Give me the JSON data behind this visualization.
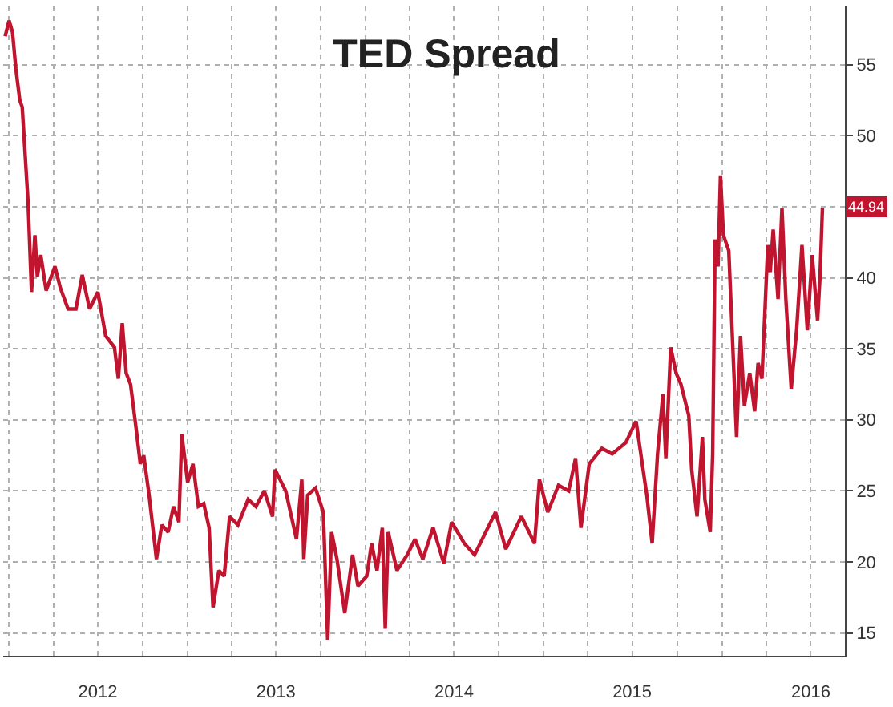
{
  "chart_data": {
    "type": "line",
    "title": "TED Spread",
    "x": [
      "2011-12-24",
      "2012-01-01",
      "2012-01-08",
      "2012-01-15",
      "2012-01-23",
      "2012-01-28",
      "2012-02-09",
      "2012-02-16",
      "2012-02-23",
      "2012-02-28",
      "2012-03-06",
      "2012-03-17",
      "2012-04-04",
      "2012-04-15",
      "2012-05-01",
      "2012-05-17",
      "2012-05-30",
      "2012-06-14",
      "2012-07-01",
      "2012-07-17",
      "2012-08-04",
      "2012-08-12",
      "2012-08-20",
      "2012-08-28",
      "2012-09-06",
      "2012-09-17",
      "2012-09-26",
      "2012-10-03",
      "2012-10-14",
      "2012-10-29",
      "2012-11-09",
      "2012-11-22",
      "2012-12-03",
      "2012-12-14",
      "2012-12-20",
      "2013-01-01",
      "2013-01-12",
      "2013-01-23",
      "2013-02-03",
      "2013-02-14",
      "2013-02-22",
      "2013-03-06",
      "2013-03-17",
      "2013-03-28",
      "2013-04-14",
      "2013-05-05",
      "2013-05-21",
      "2013-06-07",
      "2013-06-24",
      "2013-06-29",
      "2013-07-21",
      "2013-08-12",
      "2013-08-23",
      "2013-08-27",
      "2013-09-04",
      "2013-09-20",
      "2013-10-06",
      "2013-10-15",
      "2013-10-23",
      "2013-11-03",
      "2013-11-19",
      "2013-12-05",
      "2013-12-16",
      "2014-01-03",
      "2014-01-13",
      "2014-01-24",
      "2014-02-04",
      "2014-02-10",
      "2014-02-16",
      "2014-03-06",
      "2014-03-27",
      "2014-04-12",
      "2014-04-28",
      "2014-05-19",
      "2014-06-10",
      "2014-06-26",
      "2014-07-22",
      "2014-08-12",
      "2014-09-24",
      "2014-10-15",
      "2014-11-16",
      "2014-12-13",
      "2014-12-23",
      "2015-01-09",
      "2015-01-31",
      "2015-02-21",
      "2015-03-07",
      "2015-03-18",
      "2015-04-04",
      "2015-04-30",
      "2015-05-21",
      "2015-06-18",
      "2015-07-09",
      "2015-07-20",
      "2015-07-31",
      "2015-08-11",
      "2015-08-22",
      "2015-09-02",
      "2015-09-08",
      "2015-09-18",
      "2015-09-29",
      "2015-10-09",
      "2015-10-25",
      "2015-10-31",
      "2015-11-11",
      "2015-11-22",
      "2015-11-27",
      "2015-12-08",
      "2015-12-13",
      "2015-12-18",
      "2015-12-24",
      "2015-12-29",
      "2016-01-04",
      "2016-01-15",
      "2016-01-20",
      "2016-01-31",
      "2016-02-08",
      "2016-02-16",
      "2016-02-27",
      "2016-03-08",
      "2016-03-15",
      "2016-03-23",
      "2016-04-04",
      "2016-04-09",
      "2016-04-15",
      "2016-04-25",
      "2016-05-03",
      "2016-05-11",
      "2016-05-22",
      "2016-06-02",
      "2016-06-13",
      "2016-06-24",
      "2016-07-04",
      "2016-07-15",
      "2016-07-20",
      "2016-07-25"
    ],
    "series": [
      {
        "color": "#c0142f",
        "values": [
          57.0,
          58.1,
          57.3,
          54.7,
          52.5,
          52.0,
          45.3,
          39.0,
          43.0,
          40.1,
          41.6,
          39.1,
          40.8,
          39.3,
          37.8,
          37.8,
          40.2,
          37.8,
          39.0,
          35.9,
          35.1,
          32.9,
          36.8,
          33.3,
          32.5,
          29.5,
          26.9,
          27.5,
          24.7,
          20.2,
          22.6,
          22.1,
          23.9,
          22.8,
          29.0,
          25.6,
          26.9,
          23.9,
          24.1,
          22.4,
          16.8,
          19.4,
          19.0,
          23.2,
          22.6,
          24.4,
          23.9,
          25.0,
          23.2,
          26.5,
          25.0,
          21.6,
          25.8,
          20.2,
          24.7,
          25.2,
          23.5,
          14.5,
          22.1,
          20.2,
          16.4,
          20.5,
          18.3,
          19.0,
          21.3,
          19.4,
          22.4,
          15.3,
          22.1,
          19.4,
          20.5,
          21.6,
          20.2,
          22.4,
          19.9,
          22.8,
          21.3,
          20.5,
          23.5,
          20.9,
          23.2,
          21.3,
          25.8,
          23.5,
          25.4,
          25.0,
          27.3,
          22.4,
          26.9,
          28.0,
          27.6,
          28.4,
          29.9,
          27.3,
          24.7,
          21.3,
          27.6,
          31.8,
          27.3,
          35.1,
          33.3,
          32.5,
          30.3,
          26.5,
          23.2,
          28.8,
          24.4,
          22.1,
          27.6,
          42.7,
          40.8,
          47.2,
          43.0,
          41.9,
          37.8,
          28.8,
          35.9,
          31.0,
          33.3,
          30.6,
          34.0,
          32.9,
          42.3,
          40.4,
          43.4,
          38.5,
          44.9,
          38.5,
          32.2,
          36.3,
          42.3,
          36.3,
          41.6,
          37.0,
          40.1,
          44.94
        ]
      }
    ],
    "xlim": [
      "2011-12-20",
      "2016-09-09"
    ],
    "xticks": [
      {
        "value": "2012-01-01",
        "label": null
      },
      {
        "value": "2012-04-01",
        "label": null
      },
      {
        "value": "2012-07-01",
        "label": "2012"
      },
      {
        "value": "2012-10-01",
        "label": null
      },
      {
        "value": "2013-01-01",
        "label": null
      },
      {
        "value": "2013-04-01",
        "label": null
      },
      {
        "value": "2013-07-01",
        "label": "2013"
      },
      {
        "value": "2013-10-01",
        "label": null
      },
      {
        "value": "2014-01-01",
        "label": null
      },
      {
        "value": "2014-04-01",
        "label": null
      },
      {
        "value": "2014-07-01",
        "label": "2014"
      },
      {
        "value": "2014-10-01",
        "label": null
      },
      {
        "value": "2015-01-01",
        "label": null
      },
      {
        "value": "2015-04-01",
        "label": null
      },
      {
        "value": "2015-07-01",
        "label": "2015"
      },
      {
        "value": "2015-10-01",
        "label": null
      },
      {
        "value": "2016-01-01",
        "label": null
      },
      {
        "value": "2016-04-01",
        "label": null
      },
      {
        "value": "2016-07-01",
        "label": "2016"
      }
    ],
    "ylim": [
      13.4,
      59.1
    ],
    "yticks": [
      15,
      20,
      25,
      30,
      35,
      40,
      {
        "value": 45,
        "label": null
      },
      50,
      55
    ],
    "grid": true,
    "legend": false,
    "line_style": "solid",
    "marker": "none",
    "annotations": [
      {
        "text": "44.94",
        "x": "2016-07-25",
        "y": 44.94
      }
    ]
  }
}
